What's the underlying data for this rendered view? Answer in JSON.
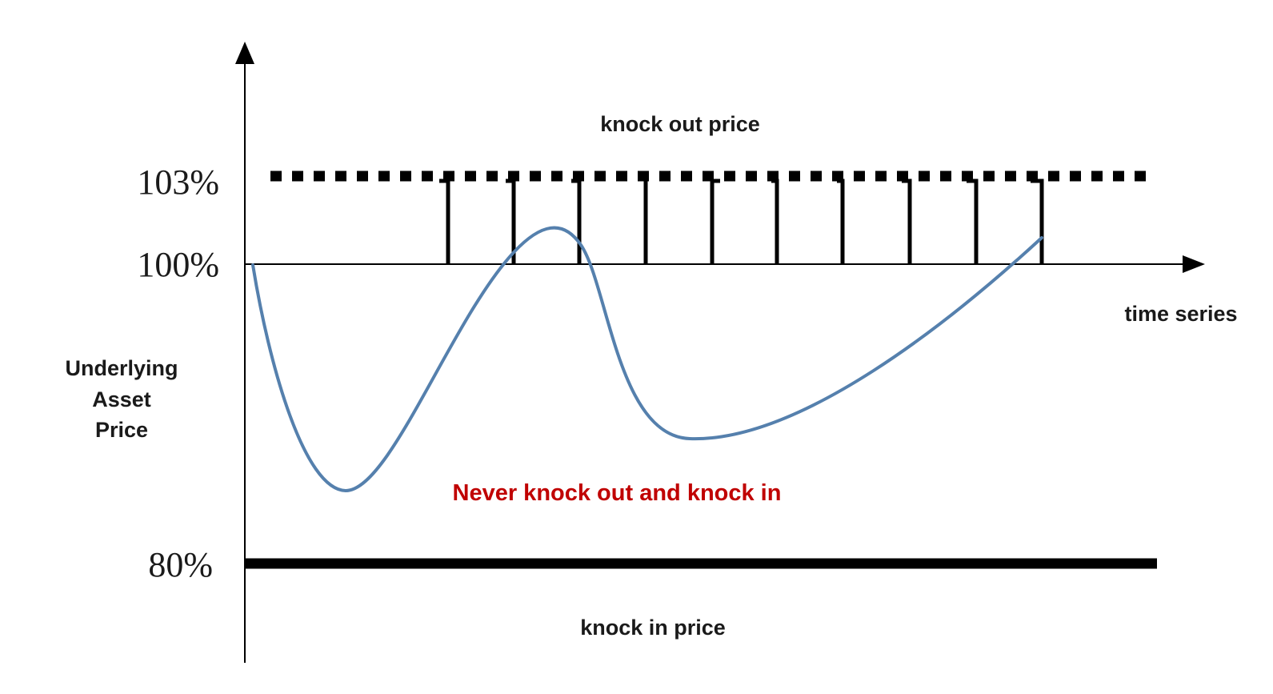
{
  "labels": {
    "knock_out": "knock out price",
    "knock_in": "knock in price",
    "time_axis": "time series",
    "y_axis": [
      "Underlying",
      "Asset",
      "Price"
    ],
    "scenario": "Never knock out and knock in"
  },
  "levels": {
    "knock_out": "103%",
    "start": "100%",
    "knock_in": "80%"
  },
  "colors": {
    "curve": "#5580ad",
    "scenario_text": "#c00000",
    "lines": "#000000"
  },
  "observation_dates_count": 10
}
